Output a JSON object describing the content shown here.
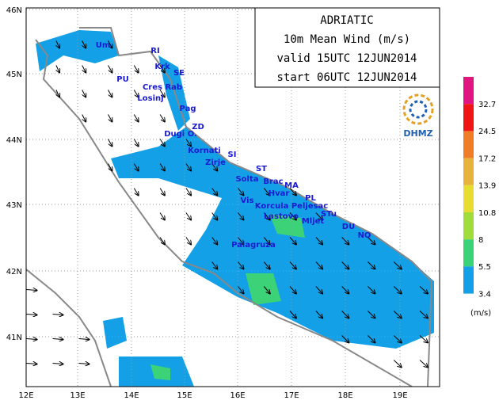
{
  "header": {
    "lines": [
      "ADRIATIC",
      "10m Mean Wind (m/s)",
      "valid 15UTC 12JUN2014",
      "start 06UTC 12JUN2014"
    ]
  },
  "logo": {
    "text": "DHMZ"
  },
  "axes": {
    "lon_labels": [
      "12E",
      "13E",
      "14E",
      "15E",
      "16E",
      "17E",
      "18E",
      "19E"
    ],
    "lat_labels": [
      "46N",
      "45N",
      "44N",
      "43N",
      "42N",
      "41N"
    ]
  },
  "colorbar": {
    "unit": "(m/s)",
    "levels": [
      {
        "label": 32.7,
        "color": "#e0157f"
      },
      {
        "label": 24.5,
        "color": "#f01414"
      },
      {
        "label": 17.2,
        "color": "#f07c28"
      },
      {
        "label": 13.9,
        "color": "#e6b43c"
      },
      {
        "label": 10.8,
        "color": "#e6dc32"
      },
      {
        "label": 8,
        "color": "#a0dc3c"
      },
      {
        "label": 5.5,
        "color": "#3cd278"
      },
      {
        "label": 3.4,
        "color": "#14a0e6"
      }
    ]
  },
  "stations": [
    "Um",
    "RI",
    "Krk",
    "SE",
    "PU",
    "Cres Rab",
    "Losinj",
    "Pag",
    "ZD",
    "Dugi O.",
    "Kornati",
    "SI",
    "Zirje",
    "ST",
    "Solta",
    "Brac",
    "MA",
    "Hvar",
    "PL",
    "Vis",
    "Korcula Peljesac",
    "Lastovo",
    "STu",
    "Mljet",
    "DU",
    "NO",
    "Palagruza"
  ]
}
